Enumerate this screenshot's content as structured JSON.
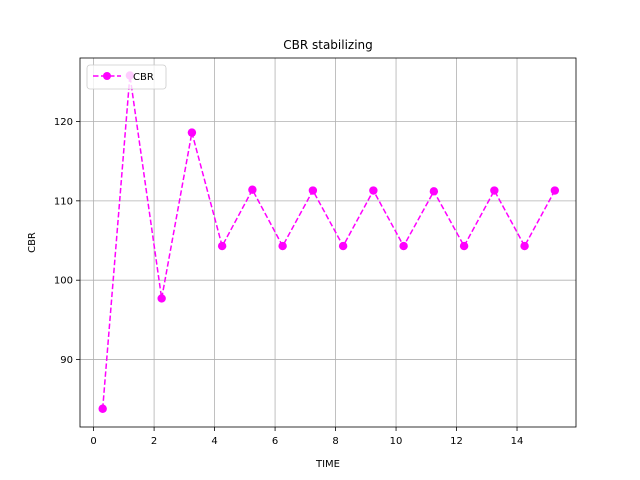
{
  "chart_data": {
    "type": "line",
    "title": "CBR stabilizing",
    "xlabel": "TIME",
    "ylabel": "CBR",
    "xlim": [
      -0.45,
      15.95
    ],
    "ylim": [
      81.5,
      128.0
    ],
    "xticks": [
      0,
      2,
      4,
      6,
      8,
      10,
      12,
      14
    ],
    "yticks": [
      90,
      100,
      110,
      120
    ],
    "grid": true,
    "legend_position": "upper-left",
    "series": [
      {
        "name": "CBR",
        "color": "#ff00ff",
        "line_style": "dashed",
        "marker": "circle",
        "x": [
          0.3,
          1.2,
          2.25,
          3.25,
          4.25,
          5.25,
          6.25,
          7.25,
          8.25,
          9.25,
          10.25,
          11.25,
          12.25,
          13.25,
          14.25,
          15.25
        ],
        "y": [
          83.8,
          125.8,
          97.7,
          118.6,
          104.3,
          111.4,
          104.3,
          111.3,
          104.3,
          111.3,
          104.3,
          111.2,
          104.3,
          111.3,
          104.3,
          111.3
        ]
      }
    ]
  }
}
